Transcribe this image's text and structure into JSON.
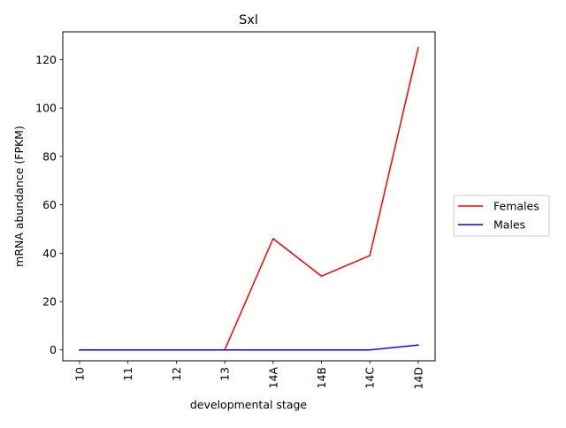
{
  "chart_data": {
    "type": "line",
    "title": "Sxl",
    "xlabel": "developmental stage",
    "ylabel": "mRNA abundance (FPKM)",
    "categories": [
      "10",
      "11",
      "12",
      "13",
      "14A",
      "14B",
      "14C",
      "14D"
    ],
    "ylim": [
      -4.5,
      131.5
    ],
    "yticks": [
      0,
      20,
      40,
      60,
      80,
      100,
      120
    ],
    "grid": false,
    "legend_position": "outside-right",
    "series": [
      {
        "name": "Females",
        "color": "#ff0000",
        "values": [
          0,
          0,
          0,
          0,
          46,
          30.5,
          39,
          125
        ]
      },
      {
        "name": "Males",
        "color": "#0000ff",
        "values": [
          0,
          0,
          0,
          0,
          0,
          0,
          0,
          2
        ]
      }
    ]
  }
}
